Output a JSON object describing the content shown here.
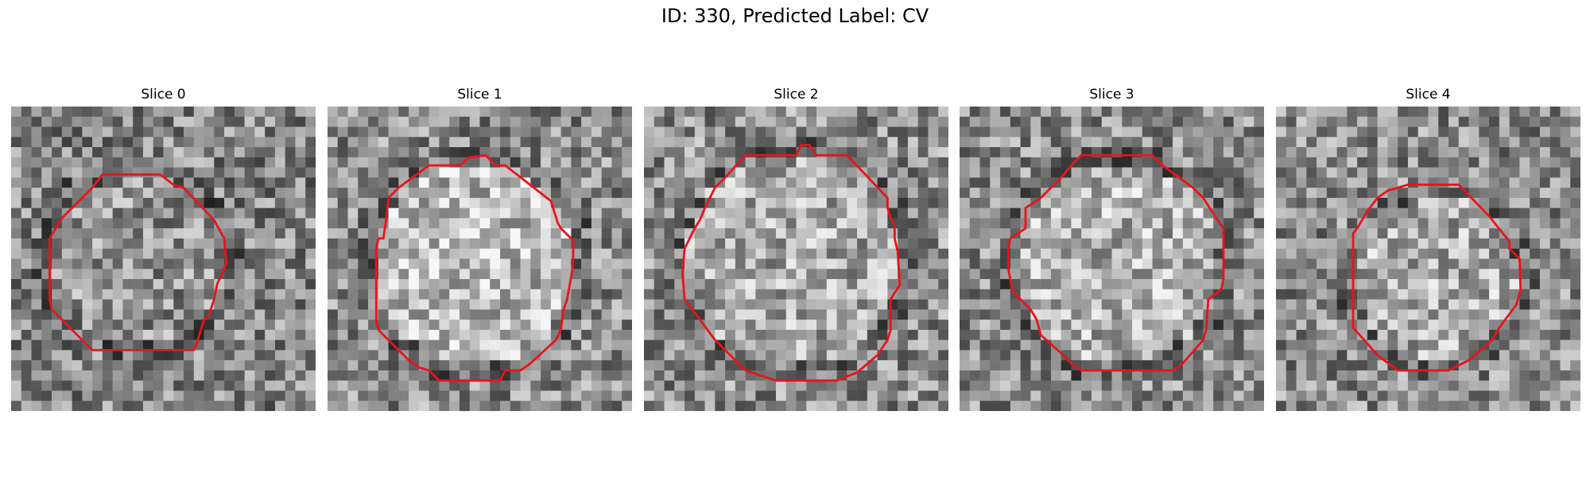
{
  "figure": {
    "title": "ID: 330, Predicted Label: CV"
  },
  "panels": [
    {
      "title": "Slice 0"
    },
    {
      "title": "Slice 1"
    },
    {
      "title": "Slice 2"
    },
    {
      "title": "Slice 3"
    },
    {
      "title": "Slice 4"
    }
  ],
  "colors": {
    "contour": "#e8141c",
    "background": "#ffffff"
  }
}
